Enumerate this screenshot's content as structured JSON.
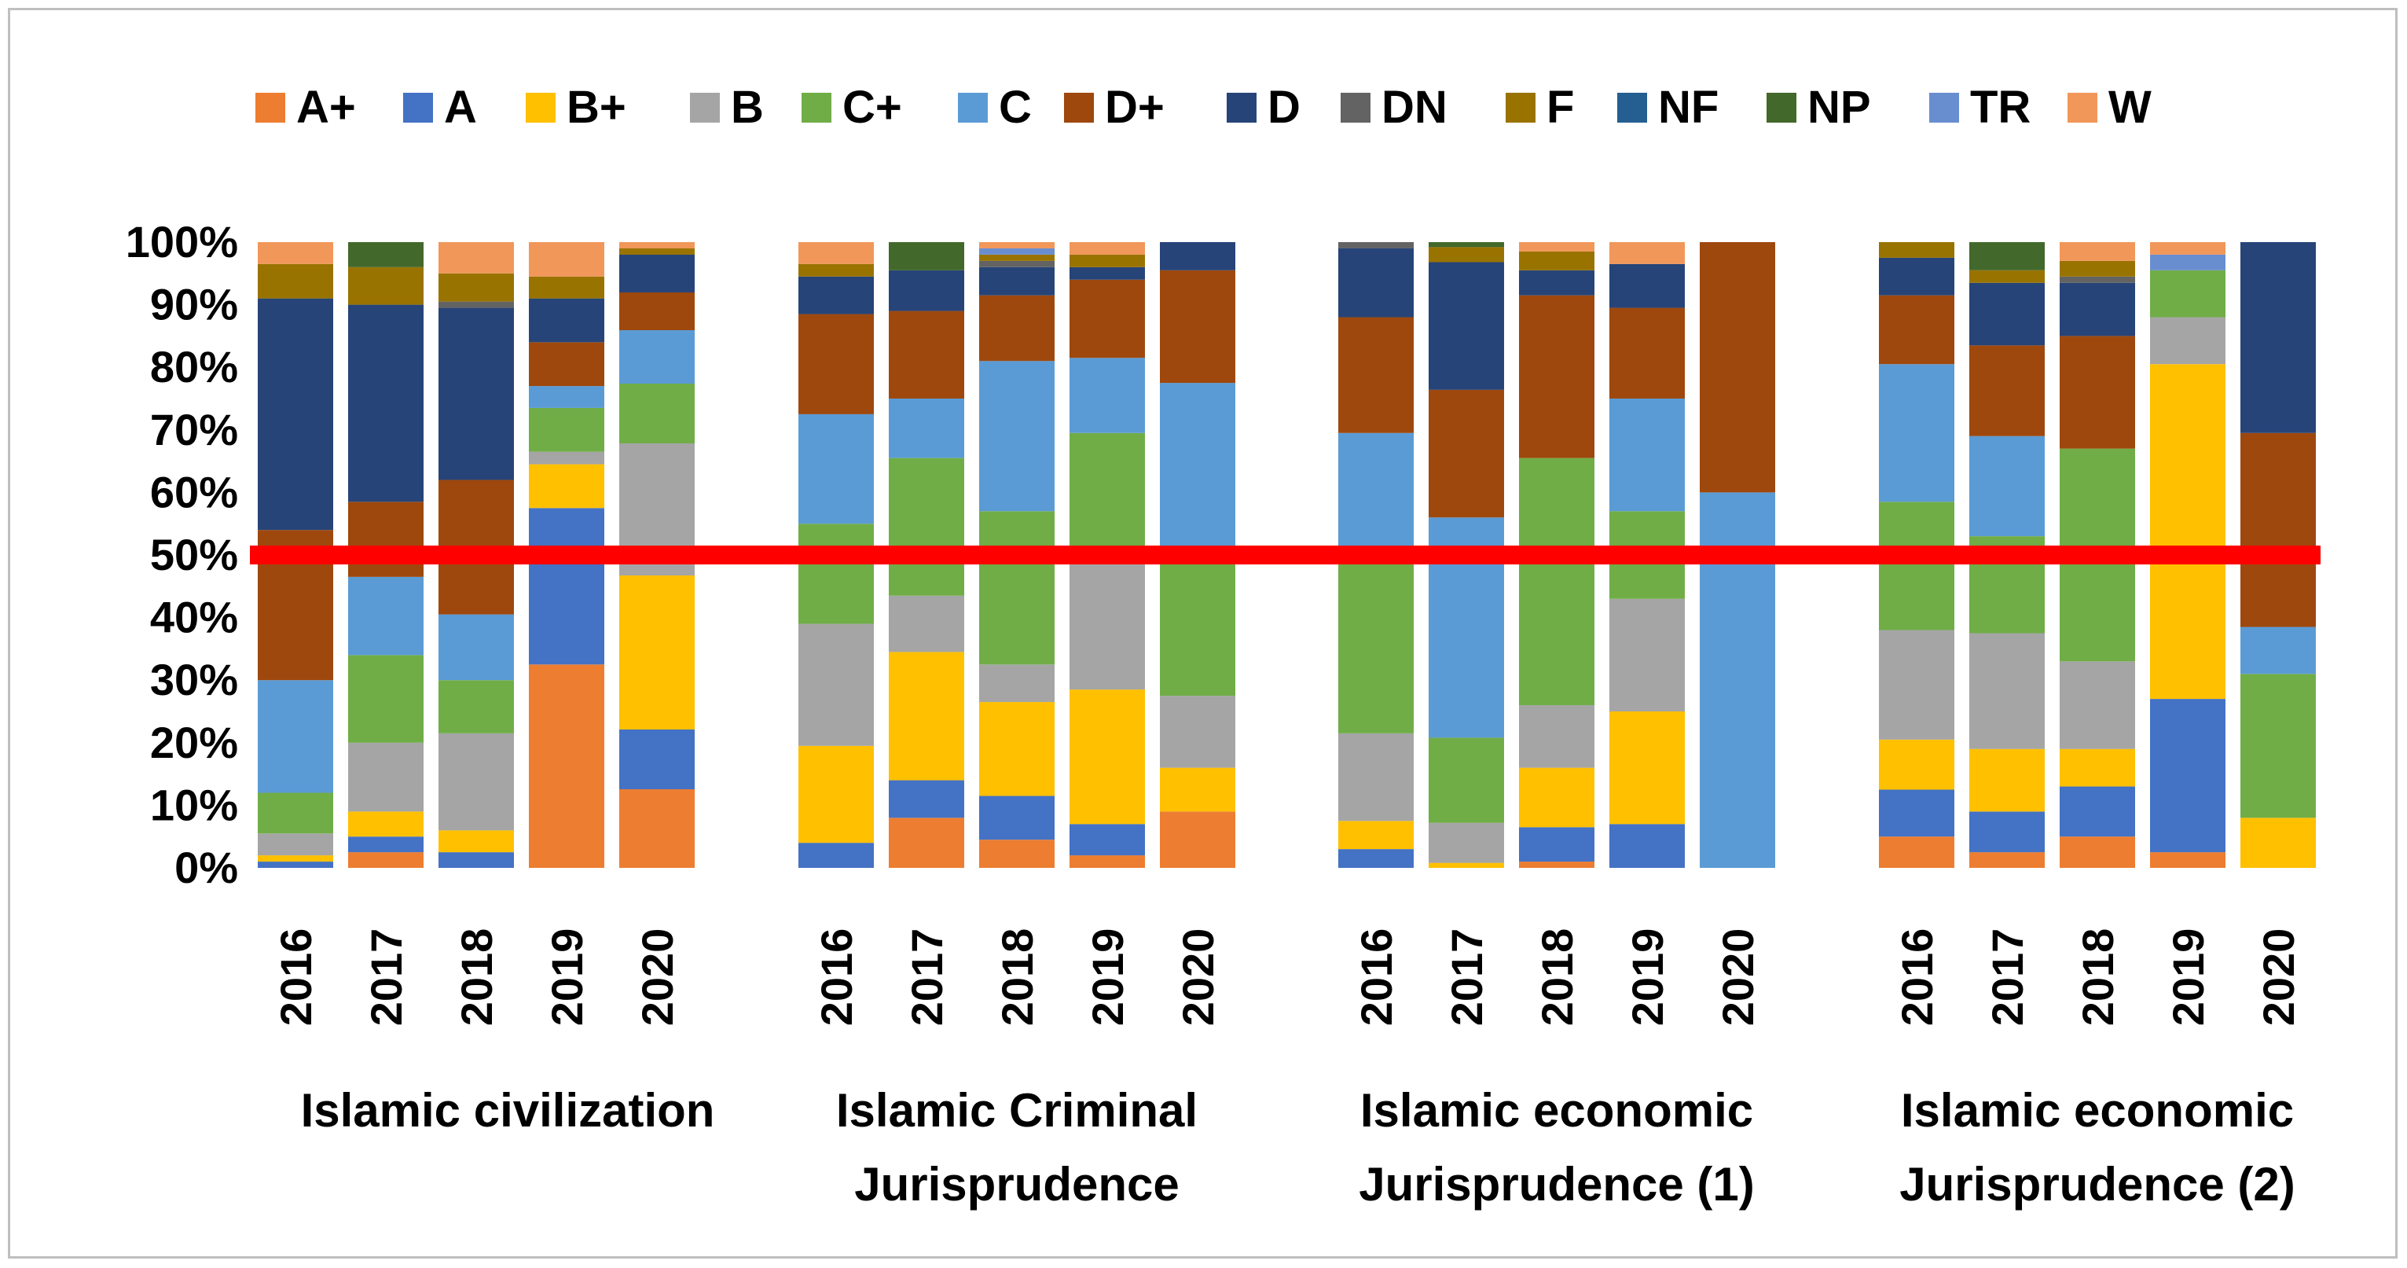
{
  "chart_data": {
    "type": "bar",
    "stacked": true,
    "normalized": true,
    "title": "",
    "xlabel": "",
    "ylabel": "",
    "ylim": [
      0,
      100
    ],
    "y_ticks": [
      "0%",
      "10%",
      "20%",
      "30%",
      "40%",
      "50%",
      "60%",
      "70%",
      "80%",
      "90%",
      "100%"
    ],
    "grid": false,
    "legend_position": "top",
    "reference_line": {
      "value": 50,
      "color": "#ff0000"
    },
    "series": [
      {
        "name": "A+",
        "color": "#ed7d31"
      },
      {
        "name": "A",
        "color": "#4472c4"
      },
      {
        "name": "B+",
        "color": "#ffc000"
      },
      {
        "name": "B",
        "color": "#a5a5a5"
      },
      {
        "name": "C+",
        "color": "#70ad47"
      },
      {
        "name": "C",
        "color": "#5b9bd5"
      },
      {
        "name": "D+",
        "color": "#9e480e"
      },
      {
        "name": "D",
        "color": "#264478"
      },
      {
        "name": "DN",
        "color": "#636363"
      },
      {
        "name": "F",
        "color": "#997300"
      },
      {
        "name": "NF",
        "color": "#255e91"
      },
      {
        "name": "NP",
        "color": "#43682b"
      },
      {
        "name": "TR",
        "color": "#698ed0"
      },
      {
        "name": "W",
        "color": "#f1975a"
      }
    ],
    "groups": [
      {
        "label_lines": [
          "Islamic civilization"
        ],
        "bars": [
          {
            "year": "2016",
            "values": [
              0,
              1,
              1,
              3.5,
              6.5,
              18,
              24,
              37,
              0,
              5.5,
              0,
              0,
              0,
              3.5
            ]
          },
          {
            "year": "2017",
            "values": [
              2.5,
              2.5,
              4,
              11,
              14,
              12.5,
              12,
              31.5,
              0,
              6,
              0,
              4,
              0,
              0
            ]
          },
          {
            "year": "2018",
            "values": [
              0,
              2.5,
              3.5,
              15.5,
              8.5,
              10.5,
              21.5,
              27.5,
              1,
              4.5,
              0,
              0,
              0,
              5
            ]
          },
          {
            "year": "2019",
            "values": [
              32.5,
              25,
              7,
              2,
              7,
              3.5,
              7,
              7,
              0,
              3.5,
              0,
              0,
              0,
              5.5
            ]
          },
          {
            "year": "2020",
            "values": [
              12.5,
              9.5,
              24.5,
              21,
              9.5,
              8.5,
              6,
              6,
              0,
              1,
              0,
              0,
              0,
              1
            ]
          }
        ]
      },
      {
        "label_lines": [
          "Islamic Criminal",
          "Jurisprudence"
        ],
        "bars": [
          {
            "year": "2016",
            "values": [
              0,
              4,
              15.5,
              19.5,
              16,
              17.5,
              16,
              6,
              0,
              2,
              0,
              0,
              0,
              3.5
            ]
          },
          {
            "year": "2017",
            "values": [
              8,
              6,
              20.5,
              9,
              22,
              9.5,
              14,
              6.5,
              0,
              0,
              0,
              4.5,
              0,
              0
            ]
          },
          {
            "year": "2018",
            "values": [
              4.5,
              7,
              15,
              6,
              24.5,
              24,
              10.5,
              4.5,
              1,
              1,
              0,
              0,
              1,
              1
            ]
          },
          {
            "year": "2019",
            "values": [
              2,
              5,
              21.5,
              20,
              21,
              12,
              12.5,
              2,
              0,
              2,
              0,
              0,
              0,
              2
            ]
          },
          {
            "year": "2020",
            "values": [
              9,
              0,
              7,
              11.5,
              23.5,
              26.5,
              18,
              4.5,
              0,
              0,
              0,
              0,
              0,
              0
            ]
          }
        ]
      },
      {
        "label_lines": [
          "Islamic economic",
          "Jurisprudence (1)"
        ],
        "bars": [
          {
            "year": "2016",
            "values": [
              0,
              3,
              4.5,
              14,
              27,
              21,
              18.5,
              11,
              1,
              0,
              0,
              0,
              0,
              0
            ]
          },
          {
            "year": "2017",
            "values": [
              0,
              0,
              1,
              8,
              17,
              44,
              25.5,
              25.5,
              0,
              3,
              0,
              1,
              0,
              0
            ]
          },
          {
            "year": "2018",
            "values": [
              1,
              5.5,
              9.5,
              10,
              39.5,
              0,
              26,
              4,
              0,
              3,
              0,
              0,
              0,
              1.5
            ]
          },
          {
            "year": "2019",
            "values": [
              0,
              7,
              18,
              18,
              14,
              18,
              14.5,
              7,
              0,
              0,
              0,
              0,
              0,
              3.5
            ]
          },
          {
            "year": "2020",
            "values": [
              0,
              0,
              0,
              0,
              0,
              60,
              40,
              0,
              0,
              0,
              0,
              0,
              0,
              0
            ]
          }
        ]
      },
      {
        "label_lines": [
          "Islamic economic",
          "Jurisprudence (2)"
        ],
        "bars": [
          {
            "year": "2016",
            "values": [
              5,
              7.5,
              8,
              17.5,
              20.5,
              22,
              11,
              6,
              0,
              2.5,
              0,
              0,
              0,
              0
            ]
          },
          {
            "year": "2017",
            "values": [
              2.5,
              6.5,
              10,
              18.5,
              15.5,
              16,
              14.5,
              10,
              0,
              2,
              0,
              4.5,
              0,
              0
            ]
          },
          {
            "year": "2018",
            "values": [
              5,
              8,
              6,
              14,
              34,
              0,
              18,
              8.5,
              1,
              2.5,
              0,
              0,
              0,
              3
            ]
          },
          {
            "year": "2019",
            "values": [
              2.5,
              24.5,
              53.5,
              7.5,
              7.5,
              0,
              0,
              0,
              0,
              0,
              0,
              0,
              2.5,
              2
            ]
          },
          {
            "year": "2020",
            "values": [
              0,
              0,
              8,
              0,
              23,
              7.5,
              31,
              30.5,
              0,
              0,
              0,
              0,
              0,
              0
            ]
          }
        ]
      }
    ]
  }
}
